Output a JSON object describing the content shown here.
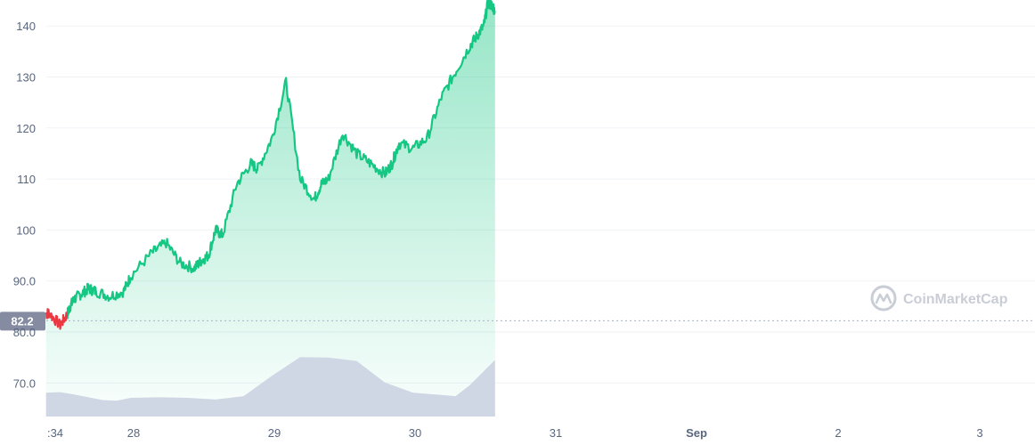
{
  "chart_data": {
    "type": "line",
    "title": "",
    "y_ticks": [
      "70.0",
      "80.0",
      "90.0",
      "100",
      "110",
      "120",
      "130",
      "140"
    ],
    "ylim": [
      68,
      148
    ],
    "x_tick_labels": [
      ":34",
      "28",
      "29",
      "30",
      "31",
      "Sep",
      "2",
      "3"
    ],
    "reference_price": 82.2,
    "reference_label": "82.2",
    "watermark": "CoinMarketCap",
    "grid": true,
    "colors": {
      "up_line": "#16c784",
      "down_line": "#ea3943",
      "volume_fill": "#cfd6e4",
      "grid": "#eff2f5",
      "ref_line": "#a6b0c3",
      "ref_label_bg": "#858ca2"
    },
    "price_series": {
      "name": "",
      "x": [
        0.0,
        0.02,
        0.1,
        0.15,
        0.17,
        0.2,
        0.25,
        0.3,
        0.35,
        0.45,
        0.55,
        0.6,
        0.75,
        0.85,
        0.95,
        1.05,
        1.1,
        1.15,
        1.2,
        1.25,
        1.35,
        1.45,
        1.5,
        1.6,
        1.7,
        1.8,
        1.9,
        1.95,
        2.0,
        2.1,
        2.2,
        2.3,
        2.4,
        2.45,
        2.5,
        2.6,
        2.7,
        2.8,
        2.9,
        3.0,
        3.05,
        3.1,
        3.13,
        3.16,
        3.18
      ],
      "y": [
        83.5,
        83.8,
        81.3,
        83.5,
        85,
        86.5,
        87.5,
        88.5,
        88,
        87,
        88,
        91,
        95.5,
        97.5,
        93.5,
        92.5,
        94,
        95,
        100,
        99,
        109,
        113,
        112,
        118,
        129,
        110,
        106,
        109,
        110,
        119,
        115,
        113,
        111,
        113,
        117,
        116,
        118,
        126,
        131,
        136,
        138,
        140,
        144.5,
        144,
        143
      ],
      "down_segment_end_index": 3
    },
    "volume_series": {
      "name": "",
      "x": [
        0.0,
        0.1,
        0.2,
        0.3,
        0.4,
        0.5,
        0.6,
        0.8,
        1.0,
        1.2,
        1.4,
        1.6,
        1.8,
        2.0,
        2.2,
        2.4,
        2.6,
        2.8,
        2.9,
        3.0,
        3.1,
        3.18
      ],
      "y": [
        4.2,
        4.3,
        3.9,
        3.4,
        2.9,
        2.8,
        3.3,
        3.4,
        3.3,
        3.0,
        3.6,
        7.2,
        10.5,
        10.4,
        9.8,
        6.0,
        4.2,
        3.8,
        3.6,
        5.5,
        8.0,
        10.0
      ],
      "ymax": 11
    }
  }
}
